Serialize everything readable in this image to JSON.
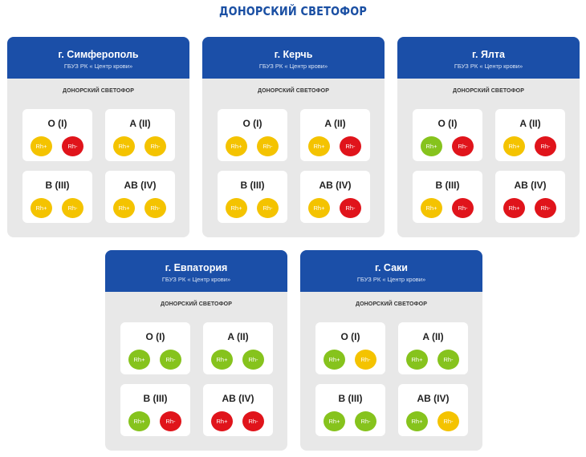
{
  "title": "ДОНОРСКИЙ СВЕТОФОР",
  "colors": {
    "header_blue": "#1b4fa8",
    "title_blue": "#1a4fa3",
    "card_bg": "#e8e8e8",
    "yellow": "#f4c300",
    "red": "#e0141b",
    "green": "#86c31d"
  },
  "cards": [
    {
      "city": "г. Симферополь",
      "org": "ГБУЗ РК « Центр крови»",
      "subtitle": "ДОНОРСКИЙ СВЕТОФОР",
      "groups": [
        {
          "name": "O (I)",
          "rh_pos": {
            "label": "Rh+",
            "status": "yellow"
          },
          "rh_neg": {
            "label": "Rh-",
            "status": "red"
          }
        },
        {
          "name": "A (II)",
          "rh_pos": {
            "label": "Rh+",
            "status": "yellow"
          },
          "rh_neg": {
            "label": "Rh-",
            "status": "yellow"
          }
        },
        {
          "name": "B (III)",
          "rh_pos": {
            "label": "Rh+",
            "status": "yellow"
          },
          "rh_neg": {
            "label": "Rh-",
            "status": "yellow"
          }
        },
        {
          "name": "AB (IV)",
          "rh_pos": {
            "label": "Rh+",
            "status": "yellow"
          },
          "rh_neg": {
            "label": "Rh-",
            "status": "yellow"
          }
        }
      ]
    },
    {
      "city": "г. Керчь",
      "org": "ГБУЗ РК « Центр крови»",
      "subtitle": "ДОНОРСКИЙ СВЕТОФОР",
      "groups": [
        {
          "name": "O (I)",
          "rh_pos": {
            "label": "Rh+",
            "status": "yellow"
          },
          "rh_neg": {
            "label": "Rh-",
            "status": "yellow"
          }
        },
        {
          "name": "A (II)",
          "rh_pos": {
            "label": "Rh+",
            "status": "yellow"
          },
          "rh_neg": {
            "label": "Rh-",
            "status": "red"
          }
        },
        {
          "name": "B (III)",
          "rh_pos": {
            "label": "Rh+",
            "status": "yellow"
          },
          "rh_neg": {
            "label": "Rh-",
            "status": "yellow"
          }
        },
        {
          "name": "AB (IV)",
          "rh_pos": {
            "label": "Rh+",
            "status": "yellow"
          },
          "rh_neg": {
            "label": "Rh-",
            "status": "red"
          }
        }
      ]
    },
    {
      "city": "г. Ялта",
      "org": "ГБУЗ РК « Центр крови»",
      "subtitle": "ДОНОРСКИЙ СВЕТОФОР",
      "groups": [
        {
          "name": "O (I)",
          "rh_pos": {
            "label": "Rh+",
            "status": "green"
          },
          "rh_neg": {
            "label": "Rh-",
            "status": "red"
          }
        },
        {
          "name": "A (II)",
          "rh_pos": {
            "label": "Rh+",
            "status": "yellow"
          },
          "rh_neg": {
            "label": "Rh-",
            "status": "red"
          }
        },
        {
          "name": "B (III)",
          "rh_pos": {
            "label": "Rh+",
            "status": "yellow"
          },
          "rh_neg": {
            "label": "Rh-",
            "status": "red"
          }
        },
        {
          "name": "AB (IV)",
          "rh_pos": {
            "label": "Rh+",
            "status": "red"
          },
          "rh_neg": {
            "label": "Rh-",
            "status": "red"
          }
        }
      ]
    },
    {
      "city": "г. Евпатория",
      "org": "ГБУЗ РК « Центр крови»",
      "subtitle": "ДОНОРСКИЙ СВЕТОФОР",
      "groups": [
        {
          "name": "O (I)",
          "rh_pos": {
            "label": "Rh+",
            "status": "green"
          },
          "rh_neg": {
            "label": "Rh-",
            "status": "green"
          }
        },
        {
          "name": "A (II)",
          "rh_pos": {
            "label": "Rh+",
            "status": "green"
          },
          "rh_neg": {
            "label": "Rh-",
            "status": "green"
          }
        },
        {
          "name": "B (III)",
          "rh_pos": {
            "label": "Rh+",
            "status": "green"
          },
          "rh_neg": {
            "label": "Rh-",
            "status": "red"
          }
        },
        {
          "name": "AB (IV)",
          "rh_pos": {
            "label": "Rh+",
            "status": "red"
          },
          "rh_neg": {
            "label": "Rh-",
            "status": "red"
          }
        }
      ]
    },
    {
      "city": "г. Саки",
      "org": "ГБУЗ РК « Центр крови»",
      "subtitle": "ДОНОРСКИЙ СВЕТОФОР",
      "groups": [
        {
          "name": "O (I)",
          "rh_pos": {
            "label": "Rh+",
            "status": "green"
          },
          "rh_neg": {
            "label": "Rh-",
            "status": "yellow"
          }
        },
        {
          "name": "A (II)",
          "rh_pos": {
            "label": "Rh+",
            "status": "green"
          },
          "rh_neg": {
            "label": "Rh-",
            "status": "green"
          }
        },
        {
          "name": "B (III)",
          "rh_pos": {
            "label": "Rh+",
            "status": "green"
          },
          "rh_neg": {
            "label": "Rh-",
            "status": "green"
          }
        },
        {
          "name": "AB (IV)",
          "rh_pos": {
            "label": "Rh+",
            "status": "green"
          },
          "rh_neg": {
            "label": "Rh-",
            "status": "yellow"
          }
        }
      ]
    }
  ]
}
